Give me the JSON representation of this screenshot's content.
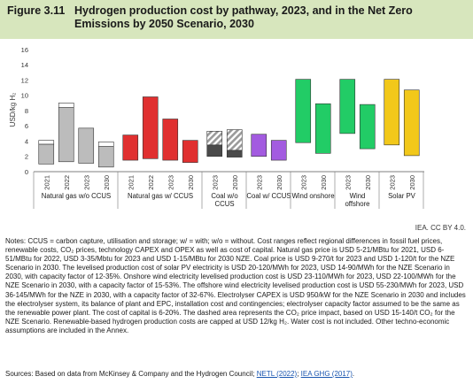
{
  "header": {
    "figure_number": "Figure 3.11",
    "title": "Hydrogen production cost by pathway, 2023, and in the Net Zero Emissions by 2050 Scenario, 2030"
  },
  "chart_data": {
    "type": "floating-bar",
    "ylabel": "USD/kg H₂",
    "ylim": [
      0,
      16
    ],
    "yticks": [
      0,
      2,
      4,
      6,
      8,
      10,
      12,
      14,
      16
    ],
    "grid": false,
    "groups": [
      {
        "label": "Natural gas w/o CCUS",
        "color": "#bcbcbc",
        "bars": [
          {
            "x": "2021",
            "low": 1.0,
            "high": 3.6,
            "upper_low": 3.6,
            "upper_high": 4.1
          },
          {
            "x": "2022",
            "low": 1.3,
            "high": 8.4,
            "upper_low": 8.4,
            "upper_high": 9.0
          },
          {
            "x": "2023",
            "low": 1.1,
            "high": 5.7
          },
          {
            "x": "2030",
            "low": 0.6,
            "high": 3.3,
            "upper_low": 3.3,
            "upper_high": 3.9
          }
        ]
      },
      {
        "label": "Natural gas w/ CCUS",
        "color": "#e03030",
        "bars": [
          {
            "x": "2021",
            "low": 1.5,
            "high": 4.8
          },
          {
            "x": "2022",
            "low": 1.7,
            "high": 9.8
          },
          {
            "x": "2023",
            "low": 1.5,
            "high": 6.9
          },
          {
            "x": "2030",
            "low": 1.2,
            "high": 4.1
          }
        ]
      },
      {
        "label": "Coal w/o CCUS",
        "color": "#4a4a4a",
        "dashed_color": "#bdbdbd",
        "bars": [
          {
            "x": "2023",
            "low": 2.0,
            "high": 3.5,
            "dashed_low": 3.5,
            "dashed_high": 5.3
          },
          {
            "x": "2030",
            "low": 1.9,
            "high": 2.8,
            "dashed_low": 2.8,
            "dashed_high": 5.5
          }
        ]
      },
      {
        "label": "Coal w/ CCUS",
        "color": "#a35be0",
        "bars": [
          {
            "x": "2023",
            "low": 2.0,
            "high": 4.9
          },
          {
            "x": "2030",
            "low": 1.5,
            "high": 4.1
          }
        ]
      },
      {
        "label": "Wind onshore",
        "color": "#22cc66",
        "bars": [
          {
            "x": "2023",
            "low": 3.8,
            "high": 12.1
          },
          {
            "x": "2030",
            "low": 2.4,
            "high": 8.9
          }
        ]
      },
      {
        "label": "Wind offshore",
        "color": "#22cc66",
        "bars": [
          {
            "x": "2023",
            "low": 5.0,
            "high": 12.1
          },
          {
            "x": "2030",
            "low": 3.0,
            "high": 8.8
          }
        ]
      },
      {
        "label": "Solar PV",
        "color": "#f2c81a",
        "bars": [
          {
            "x": "2023",
            "low": 3.5,
            "high": 12.1
          },
          {
            "x": "2030",
            "low": 2.1,
            "high": 10.7
          }
        ]
      }
    ]
  },
  "credit": "IEA. CC BY 4.0.",
  "notes": "Notes: CCUS = carbon capture, utilisation and storage; w/ = with; w/o = without. Cost ranges reflect regional differences in fossil fuel prices, renewable costs, CO₂ prices, technology CAPEX and OPEX as well as cost of capital. Natural gas price is USD 5-21/MBtu for 2021, USD 6-51/MBtu for 2022, USD 3-35/Mbtu for 2023 and USD 1-15/MBtu for 2030 NZE. Coal price is USD 9-270/t for 2023 and USD 1-120/t for the NZE Scenario in 2030. The levelised production cost of solar PV electricity is USD 20-120/MWh for 2023, USD 14-90/MWh for the NZE Scenario in 2030, with capacity factor of 12-35%. Onshore wind electricity levelised production cost is USD 23-110/MWh for 2023, USD 22-100/MWh for the NZE Scenario in 2030, with a capacity factor of 15-53%. The offshore wind electricity levelised production cost is USD 55-230/MWh for 2023, USD 36-145/MWh for the NZE in 2030, with a capacity factor of 32-67%. Electrolyser CAPEX is USD 950/kW for the NZE Scenario in 2030 and includes the electrolyser system, its balance of plant and EPC, installation cost and contingencies; electrolyser capacity factor assumed to be the same as the renewable power plant. The cost of capital is 6-20%. The dashed area represents the CO₂ price impact, based on USD 15-140/t CO₂ for the NZE Scenario. Renewable-based hydrogen production costs are capped at USD 12/kg H₂. Water cost is not included. Other techno-economic assumptions are included in the Annex.",
  "sources": {
    "prefix": "Sources: Based on data from McKinsey & Company and the Hydrogen Council; ",
    "link1": "NETL (2022)",
    "separator": "; ",
    "link2": "IEA GHG (2017)",
    "suffix": "."
  }
}
